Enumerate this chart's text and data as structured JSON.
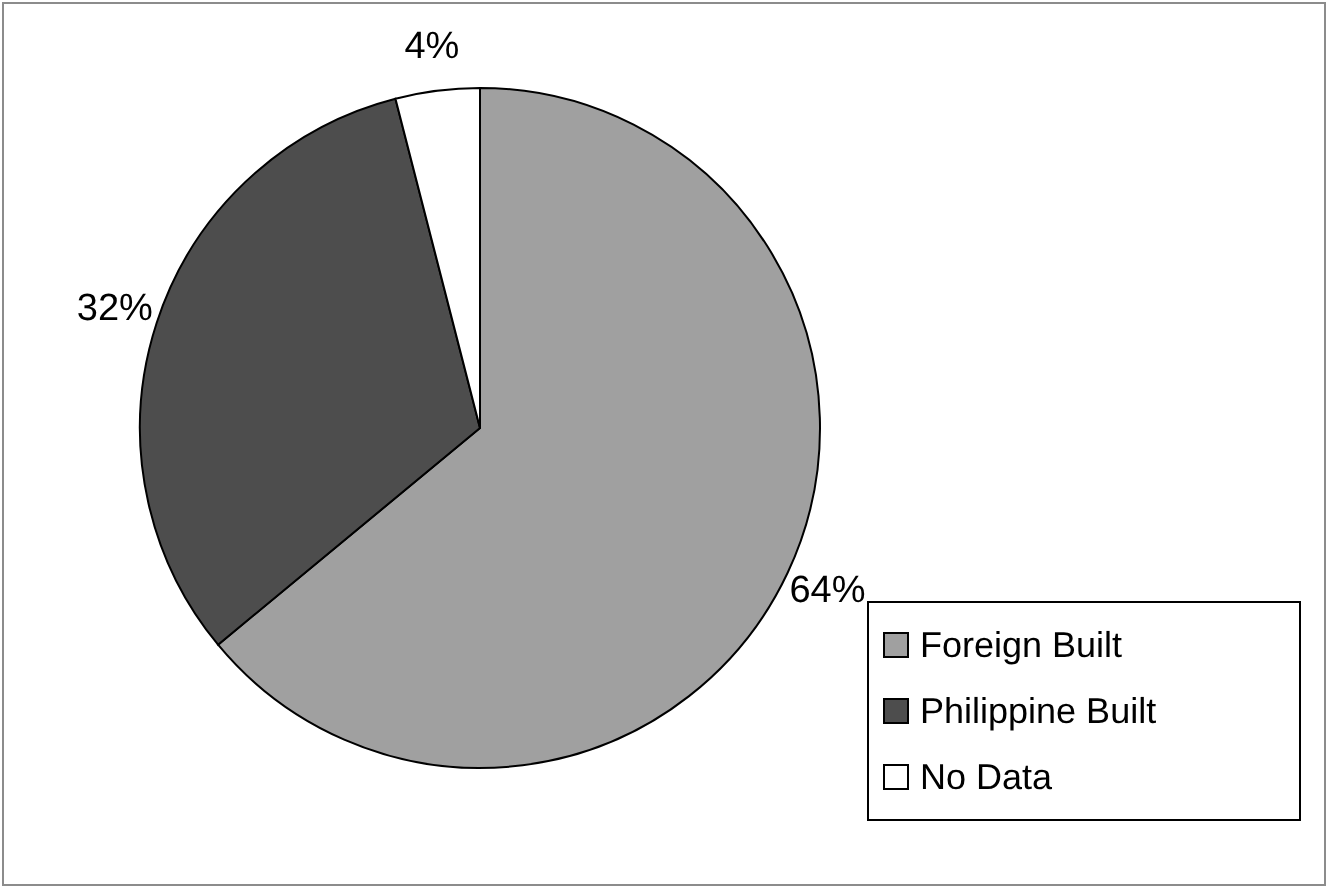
{
  "chart_data": {
    "type": "pie",
    "categories": [
      "Foreign Built",
      "Philippine Built",
      "No Data"
    ],
    "values": [
      64,
      32,
      4
    ],
    "colors": [
      "#a0a0a0",
      "#4d4d4d",
      "#ffffff"
    ],
    "value_labels": [
      "64%",
      "32%",
      "4%"
    ],
    "legend": "bottom right"
  }
}
